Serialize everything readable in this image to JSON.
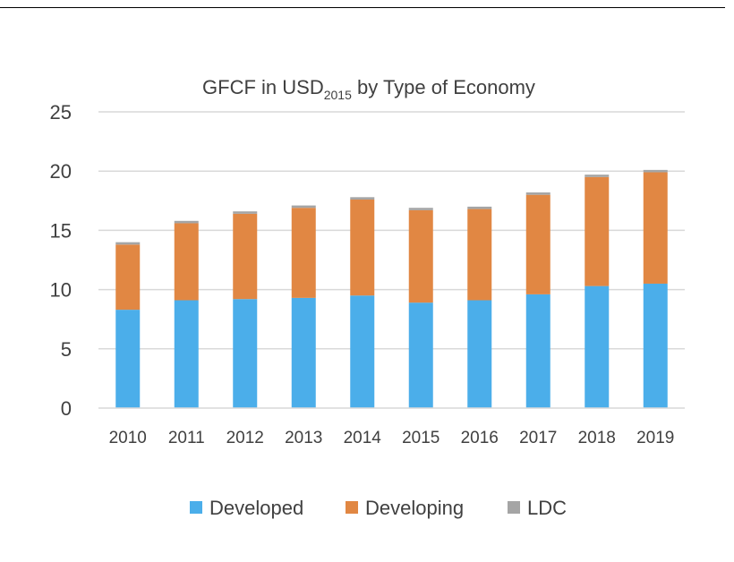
{
  "chart_data": {
    "type": "bar",
    "stacked": true,
    "title": {
      "main": "GFCF in USD",
      "subscript": "2015",
      "rest": " by Type of Economy"
    },
    "categories": [
      "2010",
      "2011",
      "2012",
      "2013",
      "2014",
      "2015",
      "2016",
      "2017",
      "2018",
      "2019"
    ],
    "series": [
      {
        "name": "Developed",
        "color": "#4BAEEA",
        "values": [
          8.3,
          9.1,
          9.2,
          9.3,
          9.5,
          8.9,
          9.1,
          9.6,
          10.3,
          10.5
        ]
      },
      {
        "name": "Developing",
        "color": "#E18743",
        "values": [
          5.5,
          6.5,
          7.2,
          7.6,
          8.1,
          7.8,
          7.7,
          8.4,
          9.2,
          9.4
        ]
      },
      {
        "name": "LDC",
        "color": "#A5A5A5",
        "values": [
          0.2,
          0.2,
          0.2,
          0.2,
          0.2,
          0.2,
          0.2,
          0.2,
          0.2,
          0.2
        ]
      }
    ],
    "ylim": [
      0,
      25
    ],
    "yticks": [
      "0",
      "5",
      "10",
      "15",
      "20",
      "25"
    ],
    "grid": true,
    "legend_position": "bottom"
  }
}
